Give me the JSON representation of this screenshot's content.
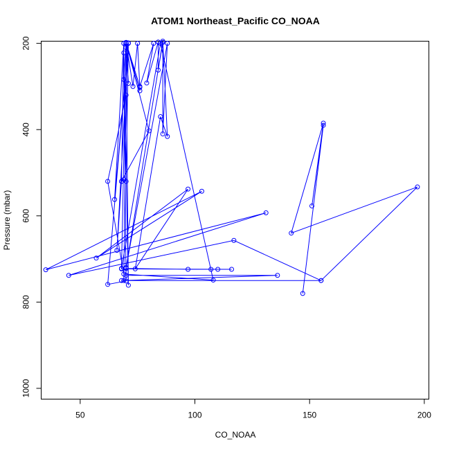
{
  "chart_data": {
    "type": "line",
    "title": "ATOM1 Northeast_Pacific CO_NOAA",
    "xlabel": "CO_NOAA",
    "ylabel": "Pressure (mbar)",
    "xlim": [
      33,
      202
    ],
    "ylim": [
      1025,
      195
    ],
    "y_reversed": true,
    "x_ticks": [
      50,
      100,
      150,
      200
    ],
    "y_ticks": [
      200,
      400,
      600,
      800,
      1000
    ],
    "grid": false,
    "legend": "none",
    "series_color": "#0000ff",
    "series": [
      {
        "points": [
          [
            147,
            780
          ],
          [
            156,
            390
          ],
          [
            151,
            577
          ],
          [
            156,
            385
          ],
          [
            142,
            640
          ],
          [
            197,
            533
          ],
          [
            155,
            750
          ],
          [
            117,
            657
          ],
          [
            45,
            738
          ],
          [
            131,
            593
          ],
          [
            35,
            725
          ],
          [
            103,
            543
          ],
          [
            57,
            698
          ],
          [
            97,
            538
          ],
          [
            74,
            723
          ],
          [
            85,
            370
          ],
          [
            88,
            416
          ],
          [
            86,
            195
          ],
          [
            70,
            722
          ],
          [
            97,
            724
          ],
          [
            107,
            724
          ],
          [
            110,
            724
          ],
          [
            116,
            724
          ],
          [
            68,
            723
          ],
          [
            70,
            210
          ],
          [
            70,
            200
          ],
          [
            71,
            761
          ],
          [
            69,
            222
          ],
          [
            70,
            751
          ],
          [
            62,
            759
          ],
          [
            71,
            199
          ],
          [
            70,
            520
          ],
          [
            69,
            516
          ],
          [
            68,
            520
          ],
          [
            69,
            200
          ],
          [
            65,
            562
          ],
          [
            71,
            200
          ],
          [
            66,
            680
          ],
          [
            68,
            520
          ],
          [
            80,
            403
          ],
          [
            70,
            198
          ],
          [
            69,
            284
          ],
          [
            70,
            198
          ],
          [
            71,
            293
          ],
          [
            70,
            198
          ],
          [
            73,
            300
          ],
          [
            75,
            200
          ],
          [
            76,
            302
          ],
          [
            76,
            310
          ],
          [
            70,
            198
          ],
          [
            76,
            300
          ],
          [
            82,
            200
          ],
          [
            79,
            292
          ],
          [
            84,
            197
          ],
          [
            84,
            262
          ],
          [
            86,
            198
          ],
          [
            86,
            410
          ],
          [
            88,
            200
          ],
          [
            70,
            720
          ],
          [
            70,
            738
          ],
          [
            136,
            738
          ],
          [
            68,
            750
          ],
          [
            155,
            750
          ],
          [
            69,
            750
          ],
          [
            70,
            320
          ],
          [
            62,
            520
          ],
          [
            69,
            735
          ],
          [
            108,
            749
          ],
          [
            85,
            200
          ],
          [
            68,
            722
          ]
        ]
      }
    ]
  }
}
